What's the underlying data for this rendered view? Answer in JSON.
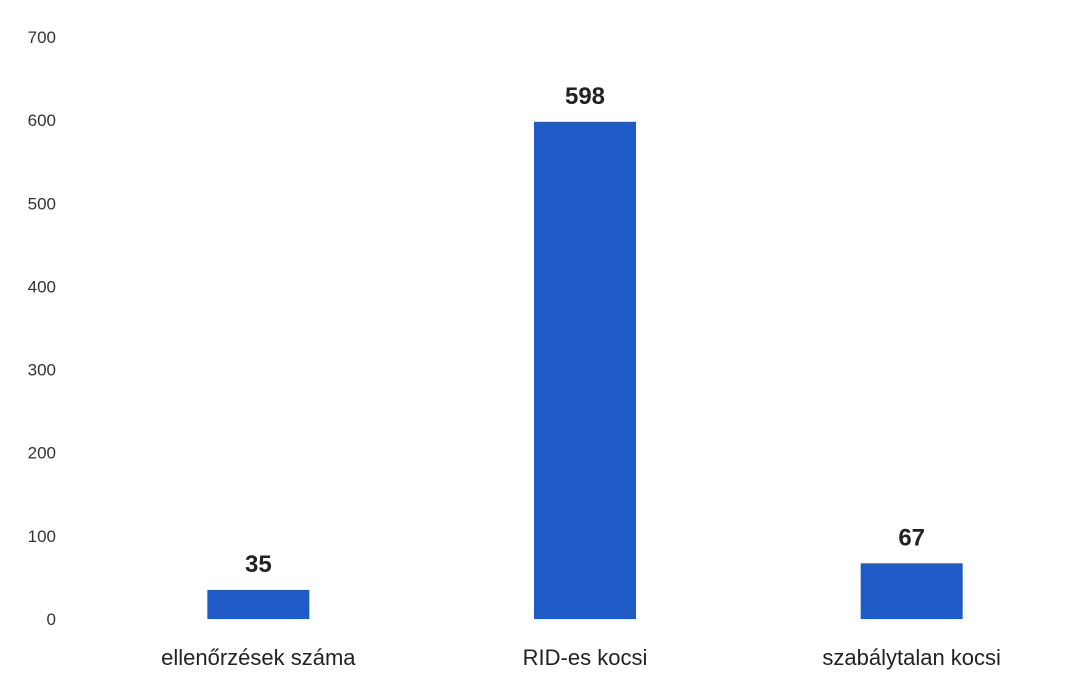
{
  "chart_data": {
    "type": "bar",
    "title": "",
    "xlabel": "",
    "ylabel": "",
    "categories": [
      "ellenőrzések száma",
      "RID-es kocsi",
      "szabálytalan kocsi"
    ],
    "values": [
      35,
      598,
      67
    ],
    "data_labels": [
      "35",
      "598",
      "67"
    ],
    "ylim": [
      0,
      700
    ],
    "yticks": [
      0,
      100,
      200,
      300,
      400,
      500,
      600,
      700
    ],
    "ytick_labels": [
      "0",
      "100",
      "200",
      "300",
      "400",
      "500",
      "600",
      "700"
    ],
    "grid": false,
    "legend": "none",
    "bar_color": "#1e5bc6"
  }
}
